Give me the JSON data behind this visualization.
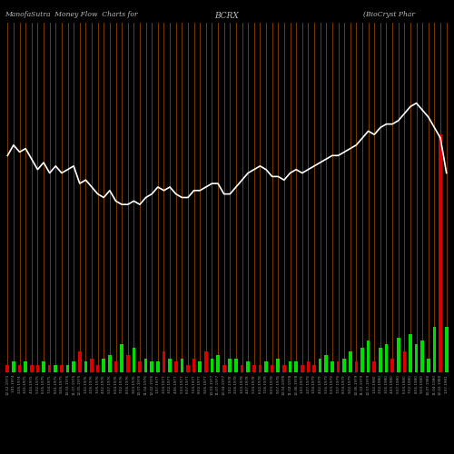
{
  "title_left": "ManofaSutra  Money Flow  Charts for",
  "title_mid": "BCRX",
  "title_right": "(BioCryst Phar",
  "bg_color": "#000000",
  "grid_color": "#8B4500",
  "bar_colors": [
    "red",
    "green",
    "red",
    "green",
    "red",
    "red",
    "green",
    "red",
    "green",
    "red",
    "green",
    "green",
    "red",
    "green",
    "red",
    "red",
    "green",
    "green",
    "red",
    "green",
    "red",
    "green",
    "red",
    "green",
    "green",
    "green",
    "red",
    "green",
    "red",
    "green",
    "red",
    "red",
    "green",
    "red",
    "green",
    "green",
    "red",
    "green",
    "green",
    "red",
    "green",
    "red",
    "red",
    "green",
    "red",
    "green",
    "red",
    "green",
    "green",
    "red",
    "red",
    "red",
    "green",
    "green",
    "green",
    "red",
    "green",
    "green",
    "red",
    "green",
    "green",
    "red",
    "green",
    "green",
    "red",
    "green",
    "red",
    "green",
    "green",
    "green",
    "green",
    "green",
    "red",
    "green"
  ],
  "bar_heights": [
    2,
    3,
    2,
    3,
    2,
    2,
    3,
    2,
    2,
    2,
    2,
    3,
    6,
    3,
    4,
    2,
    4,
    5,
    3,
    8,
    5,
    7,
    3,
    4,
    3,
    3,
    6,
    4,
    3,
    4,
    2,
    4,
    3,
    6,
    4,
    5,
    2,
    4,
    4,
    2,
    3,
    2,
    2,
    3,
    2,
    4,
    2,
    3,
    3,
    2,
    3,
    2,
    4,
    5,
    3,
    3,
    4,
    6,
    3,
    7,
    9,
    3,
    7,
    8,
    4,
    10,
    6,
    11,
    8,
    9,
    4,
    13,
    68,
    13
  ],
  "line_y": [
    62,
    65,
    63,
    64,
    61,
    58,
    60,
    57,
    59,
    57,
    58,
    59,
    54,
    55,
    53,
    51,
    50,
    52,
    49,
    48,
    48,
    49,
    48,
    50,
    51,
    53,
    52,
    53,
    51,
    50,
    50,
    52,
    52,
    53,
    54,
    54,
    51,
    51,
    53,
    55,
    57,
    58,
    59,
    58,
    56,
    56,
    55,
    57,
    58,
    57,
    58,
    59,
    60,
    61,
    62,
    62,
    63,
    64,
    65,
    67,
    69,
    68,
    70,
    71,
    71,
    72,
    74,
    76,
    77,
    75,
    73,
    70,
    67,
    57
  ],
  "x_labels": [
    "12.12.1973",
    "1.01.1974",
    "2.05.1974",
    "3.01.1975",
    "4.04.1975",
    "5.02.1975",
    "6.06.1975",
    "7.04.1975",
    "8.01.1975",
    "9.05.1975",
    "10.03.1975",
    "11.07.1975",
    "12.05.1975",
    "1.02.1976",
    "2.06.1976",
    "3.05.1976",
    "4.02.1976",
    "5.07.1976",
    "6.04.1976",
    "7.02.1976",
    "8.06.1976",
    "9.03.1976",
    "10.07.1976",
    "11.04.1976",
    "12.02.1976",
    "1.07.1977",
    "2.04.1977",
    "3.02.1977",
    "4.06.1977",
    "5.03.1977",
    "6.07.1977",
    "7.04.1977",
    "8.02.1977",
    "9.06.1977",
    "10.03.1977",
    "11.07.1977",
    "12.04.1977",
    "1.02.1978",
    "2.06.1978",
    "3.03.1978",
    "4.07.1978",
    "5.04.1978",
    "6.02.1978",
    "7.06.1978",
    "8.03.1978",
    "9.07.1978",
    "10.04.1978",
    "11.02.1978",
    "12.06.1978",
    "1.03.1979",
    "2.07.1979",
    "3.04.1979",
    "4.02.1979",
    "5.06.1979",
    "6.03.1979",
    "7.07.1979",
    "8.04.1979",
    "9.02.1979",
    "10.06.1979",
    "11.03.1979",
    "12.07.1979",
    "1.04.1980",
    "2.02.1980",
    "3.06.1980",
    "4.03.1980",
    "5.07.1980",
    "6.04.1980",
    "7.02.1980",
    "8.06.1980",
    "9.03.1980",
    "10.07.1980",
    "11.04.1980",
    "12.02.1980",
    "1.07.1981"
  ],
  "line_color": "#ffffff",
  "green_color": "#00dd00",
  "red_color": "#dd0000",
  "ymax": 100,
  "figsize": [
    5.0,
    5.0
  ],
  "dpi": 100
}
